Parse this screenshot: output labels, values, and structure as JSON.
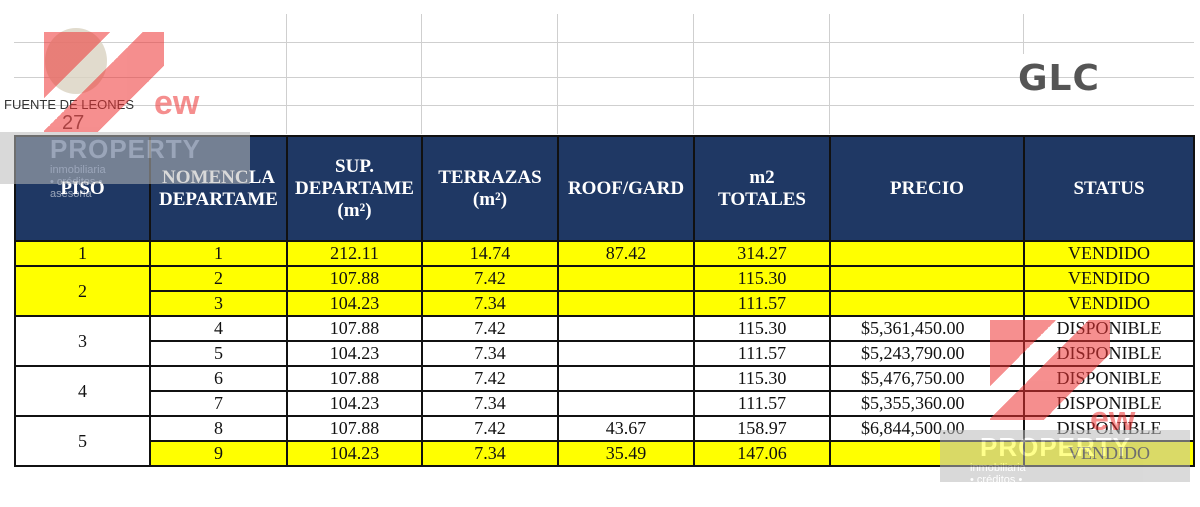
{
  "header": {
    "logo_title": "FUENTE DE LEONES",
    "logo_number": "27",
    "brand": "GLC"
  },
  "watermark": {
    "word": "ew",
    "name": "PROPERTY",
    "tagline": "inmobiliaria • créditos • asesoria"
  },
  "table": {
    "columns": [
      "PISO",
      "NOMENCLA\nDEPARTAME",
      "SUP.\nDEPARTAME\n(m²)",
      "TERRAZAS\n(m²)",
      "ROOF/GARD",
      "m2\nTOTALES",
      "PRECIO",
      "STATUS"
    ],
    "floors": [
      {
        "piso": "1",
        "highlight": true,
        "units": [
          {
            "highlight": true,
            "cells": [
              "1",
              "212.11",
              "14.74",
              "87.42",
              "314.27",
              null,
              "VENDIDO"
            ]
          }
        ]
      },
      {
        "piso": "2",
        "highlight": true,
        "units": [
          {
            "highlight": true,
            "cells": [
              "2",
              "107.88",
              "7.42",
              null,
              "115.30",
              null,
              "VENDIDO"
            ]
          },
          {
            "highlight": true,
            "cells": [
              "3",
              "104.23",
              "7.34",
              null,
              "111.57",
              null,
              "VENDIDO"
            ]
          }
        ]
      },
      {
        "piso": "3",
        "highlight": false,
        "units": [
          {
            "highlight": false,
            "cells": [
              "4",
              "107.88",
              "7.42",
              null,
              "115.30",
              "$5,361,450.00",
              "DISPONIBLE"
            ]
          },
          {
            "highlight": false,
            "cells": [
              "5",
              "104.23",
              "7.34",
              null,
              "111.57",
              "$5,243,790.00",
              "DISPONIBLE"
            ]
          }
        ]
      },
      {
        "piso": "4",
        "highlight": false,
        "units": [
          {
            "highlight": false,
            "cells": [
              "6",
              "107.88",
              "7.42",
              null,
              "115.30",
              "$5,476,750.00",
              "DISPONIBLE"
            ]
          },
          {
            "highlight": false,
            "cells": [
              "7",
              "104.23",
              "7.34",
              null,
              "111.57",
              "$5,355,360.00",
              "DISPONIBLE"
            ]
          }
        ]
      },
      {
        "piso": "5",
        "highlight": false,
        "units": [
          {
            "highlight": false,
            "cells": [
              "8",
              "107.88",
              "7.42",
              "43.67",
              "158.97",
              "$6,844,500.00",
              "DISPONIBLE"
            ]
          },
          {
            "highlight": true,
            "cells": [
              "9",
              "104.23",
              "7.34",
              "35.49",
              "147.06",
              null,
              "VENDIDO"
            ]
          }
        ]
      }
    ]
  }
}
